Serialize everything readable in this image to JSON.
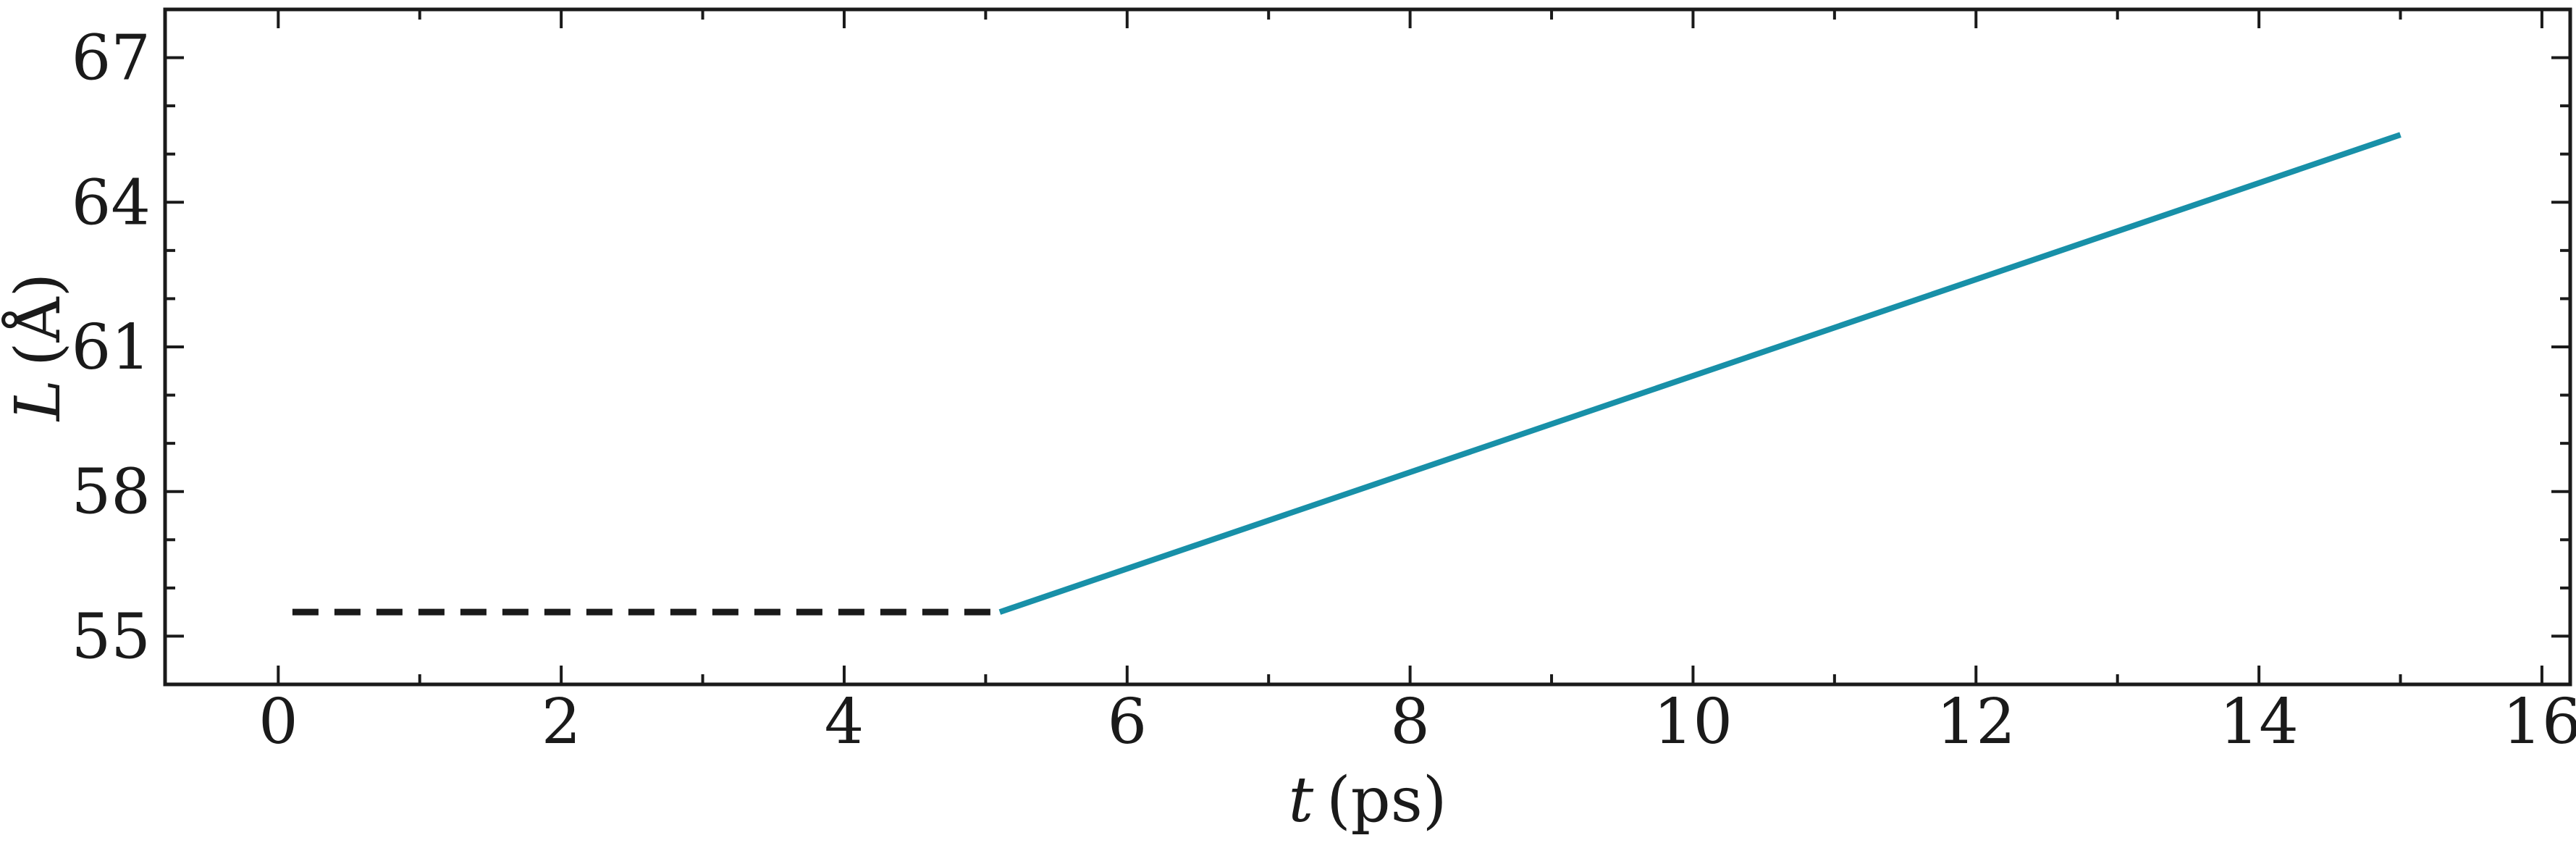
{
  "chart_data": {
    "type": "line",
    "xlabel_var": "t",
    "xlabel_unit": "(ps)",
    "ylabel_var": "L",
    "ylabel_unit": "(Å)",
    "xlim": [
      -0.8,
      16.2
    ],
    "ylim": [
      54.0,
      68.0
    ],
    "x_ticks": [
      0,
      2,
      4,
      6,
      8,
      10,
      12,
      14,
      16
    ],
    "x_tick_labels": [
      "0",
      "2",
      "4",
      "6",
      "8",
      "10",
      "12",
      "14",
      "16"
    ],
    "x_minor_ticks": [
      1,
      3,
      5,
      7,
      9,
      11,
      13,
      15
    ],
    "y_ticks": [
      55,
      58,
      61,
      64,
      67
    ],
    "y_tick_labels": [
      "55",
      "58",
      "61",
      "64",
      "67"
    ],
    "y_minor_ticks": [
      56,
      57,
      59,
      60,
      62,
      63,
      65,
      66
    ],
    "grid": false,
    "series": [
      {
        "style": "dashed",
        "color": "#1a1a1a",
        "x": [
          0.1,
          5.1
        ],
        "y": [
          55.5,
          55.5
        ]
      },
      {
        "style": "solid",
        "color": "#1890a8",
        "x": [
          5.1,
          15.0
        ],
        "y": [
          55.5,
          65.4
        ]
      }
    ]
  }
}
